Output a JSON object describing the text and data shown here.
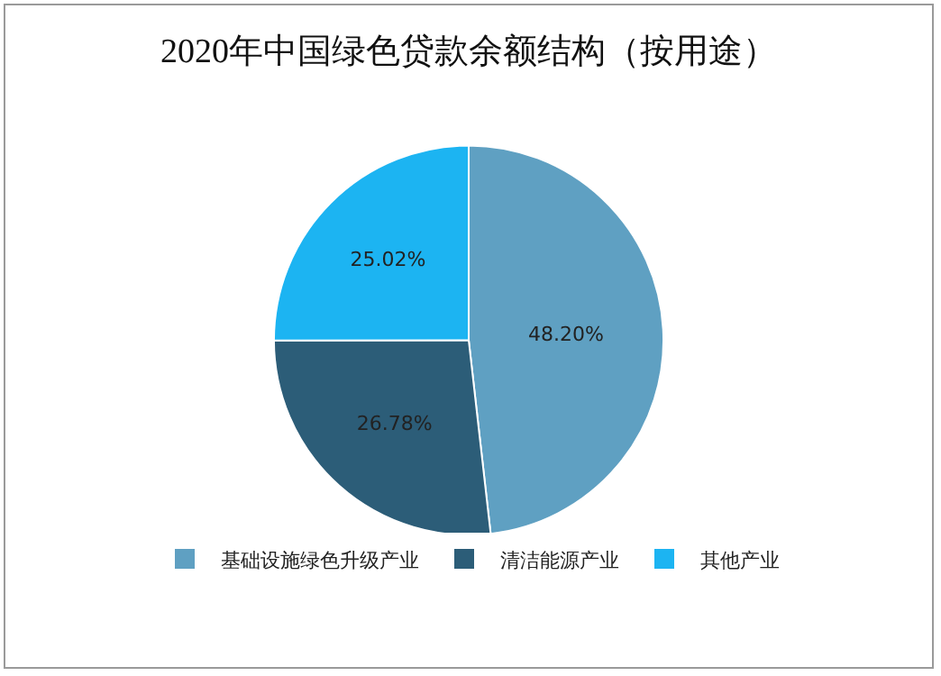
{
  "chart_data": {
    "type": "pie",
    "title": "2020年中国绿色贷款余额结构（按用途）",
    "categories": [
      "基础设施绿色升级产业",
      "清洁能源产业",
      "其他产业"
    ],
    "values": [
      48.2,
      26.78,
      25.02
    ],
    "value_labels": [
      "48.20%",
      "26.78%",
      "25.02%"
    ],
    "colors": [
      "#5fa0c2",
      "#2c5d78",
      "#1cb4f2"
    ],
    "legend": "bottom"
  }
}
